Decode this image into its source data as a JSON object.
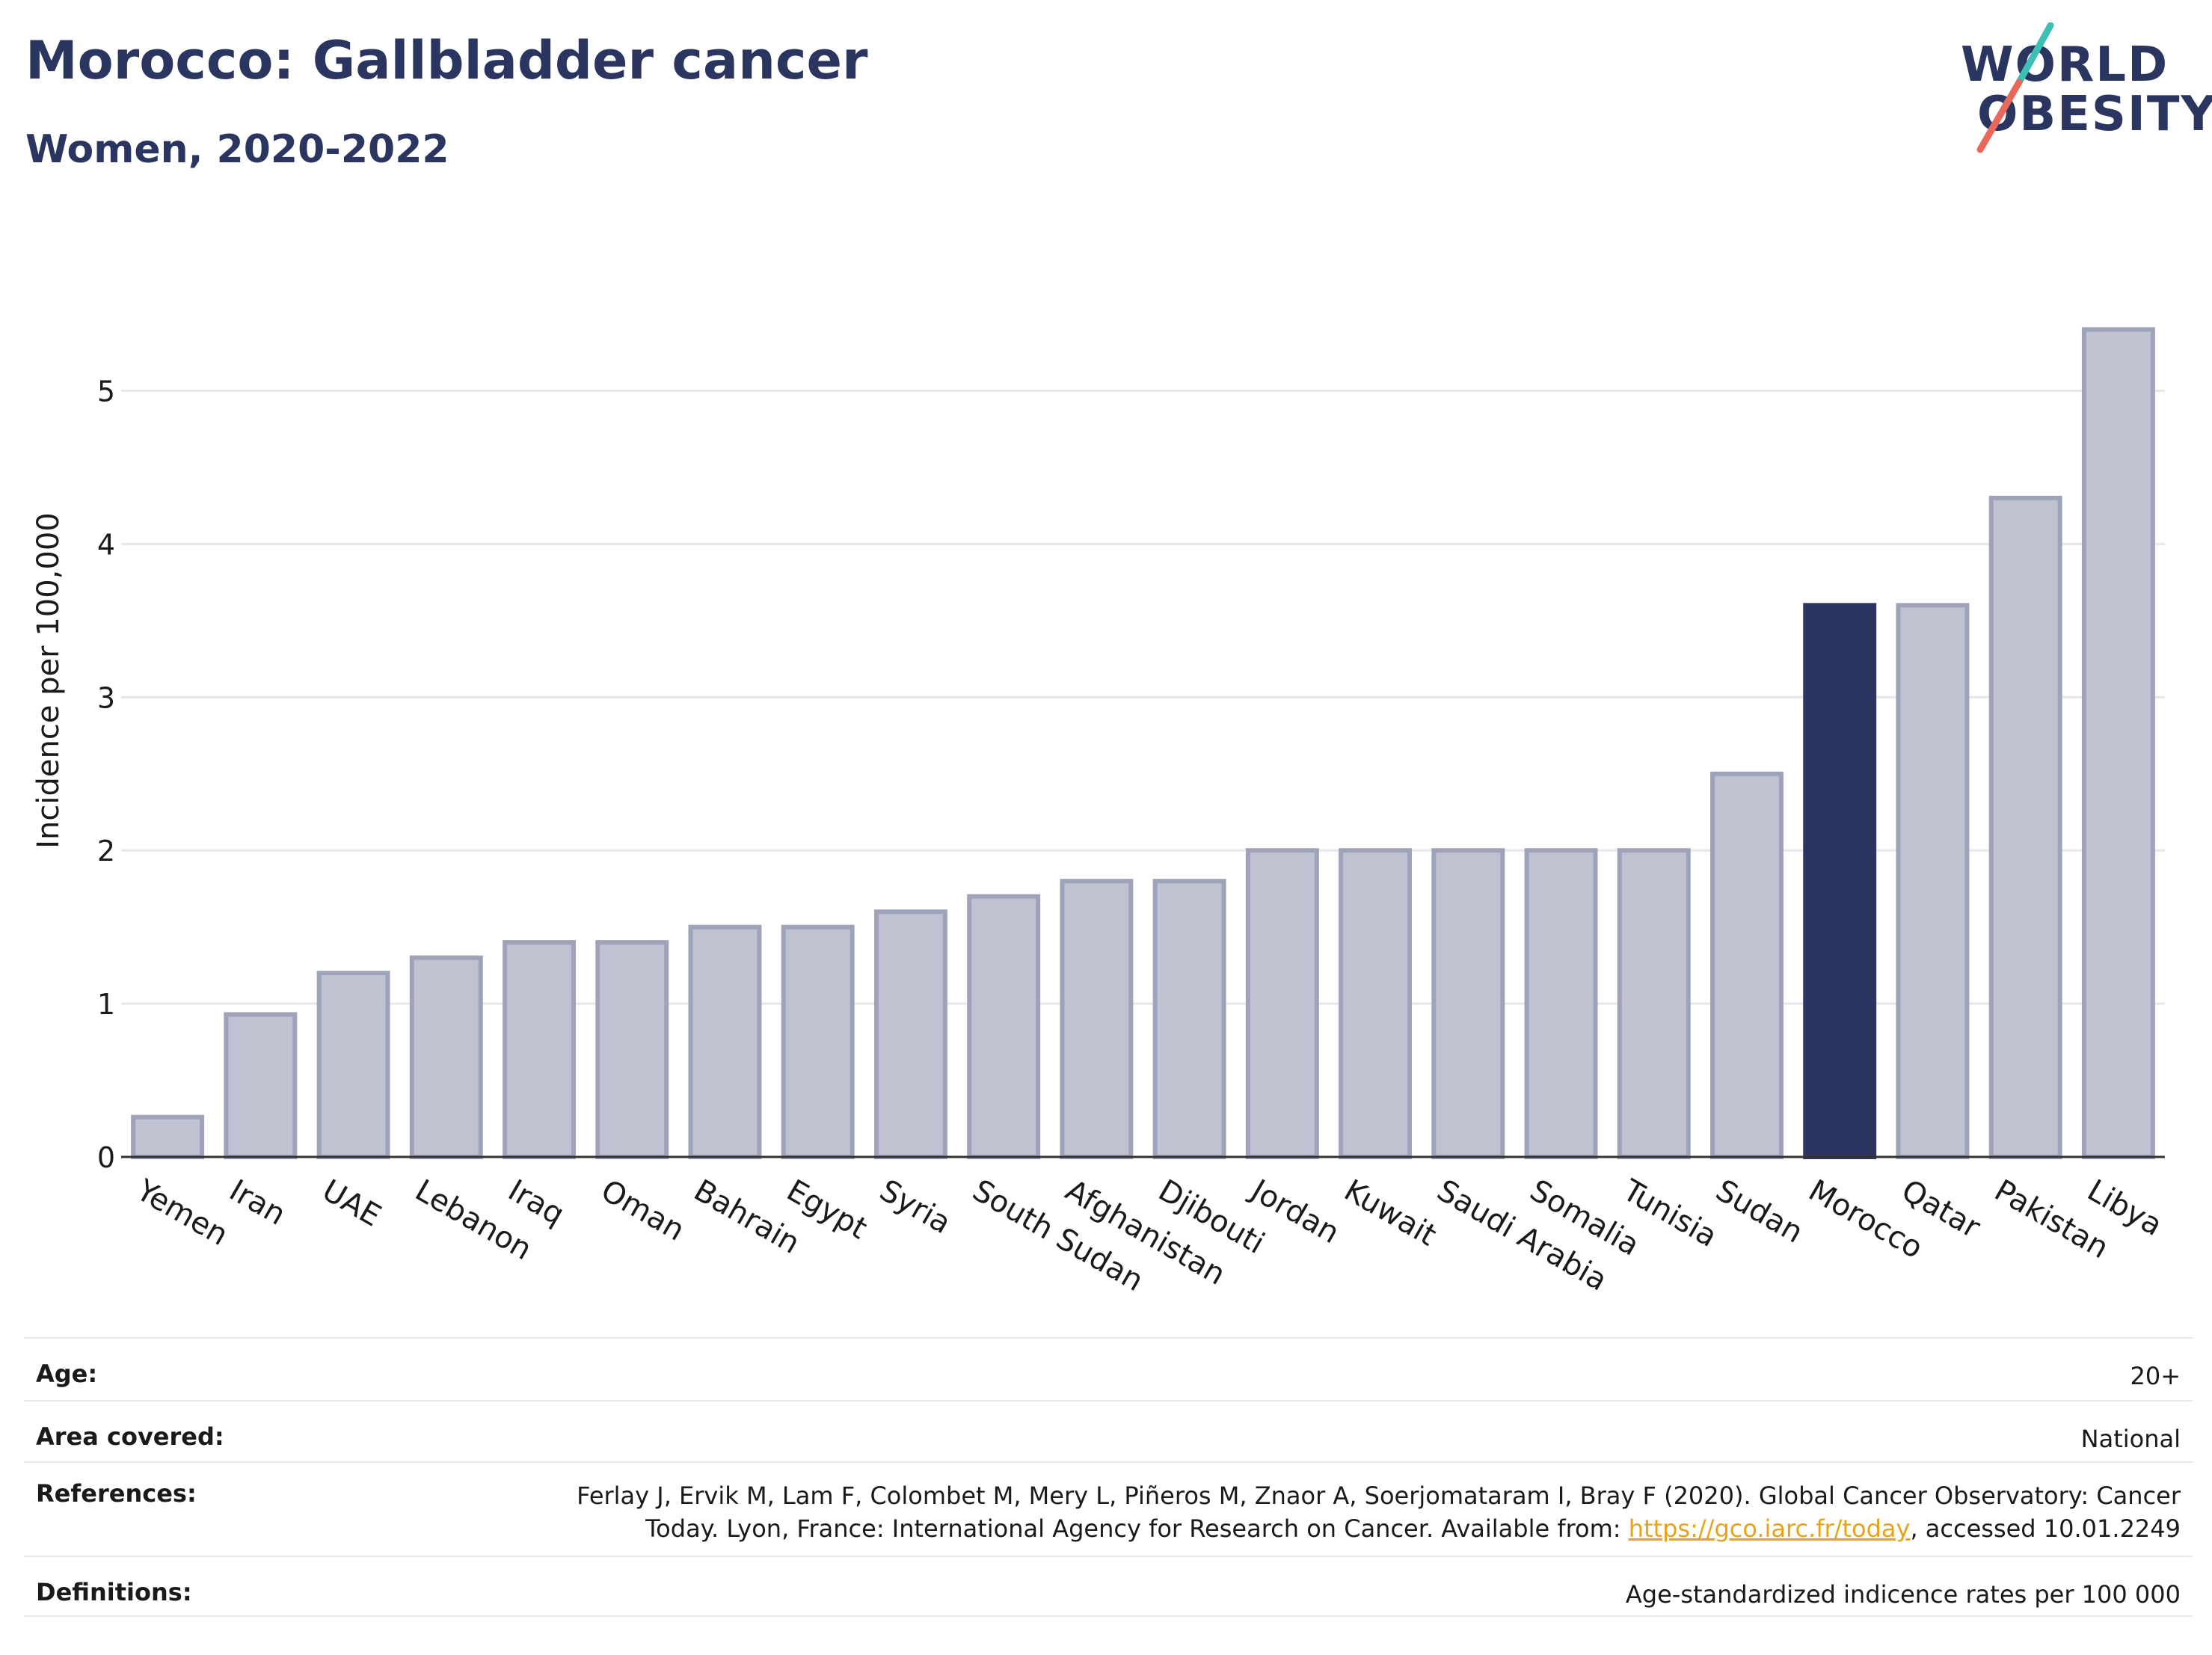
{
  "header": {
    "title": "Morocco: Gallbladder cancer",
    "subtitle": "Women, 2020-2022"
  },
  "logo": {
    "line1": "WORLD",
    "line2": "OBESITY",
    "accent_teal": "#3dbfb4",
    "accent_coral": "#e8685b"
  },
  "colors": {
    "bar_default": "#bfc2d0",
    "bar_border": "#9ea3ba",
    "bar_highlight": "#2a3560"
  },
  "chart_data": {
    "type": "bar",
    "categories": [
      "Yemen",
      "Iran",
      "UAE",
      "Lebanon",
      "Iraq",
      "Oman",
      "Bahrain",
      "Egypt",
      "Syria",
      "South Sudan",
      "Afghanistan",
      "Djibouti",
      "Jordan",
      "Kuwait",
      "Saudi Arabia",
      "Somalia",
      "Tunisia",
      "Sudan",
      "Morocco",
      "Qatar",
      "Pakistan",
      "Libya"
    ],
    "values": [
      0.26,
      0.93,
      1.2,
      1.3,
      1.4,
      1.4,
      1.5,
      1.5,
      1.6,
      1.7,
      1.8,
      1.8,
      2.0,
      2.0,
      2.0,
      2.0,
      2.0,
      2.5,
      3.6,
      3.6,
      4.3,
      5.4
    ],
    "highlight": "Morocco",
    "ylabel": "Incidence per 100,000",
    "ylim": [
      0,
      5.5
    ],
    "yticks": [
      0,
      1,
      2,
      3,
      4,
      5
    ],
    "grid": true
  },
  "info": {
    "age_label": "Age:",
    "age_value": "20+",
    "area_label": "Area covered:",
    "area_value": "National",
    "references_label": "References:",
    "references_line1": "Ferlay J, Ervik M, Lam F, Colombet M, Mery L, Piñeros M, Znaor A, Soerjomataram I, Bray F (2020). Global Cancer Observatory: Cancer",
    "references_line2_pre": "Today. Lyon, France: International Agency for Research on Cancer. Available from: ",
    "references_link": "https://gco.iarc.fr/today",
    "references_line2_post": ", accessed 10.01.2249",
    "definitions_label": "Definitions:",
    "definitions_value": "Age-standardized indicence rates per 100 000"
  }
}
